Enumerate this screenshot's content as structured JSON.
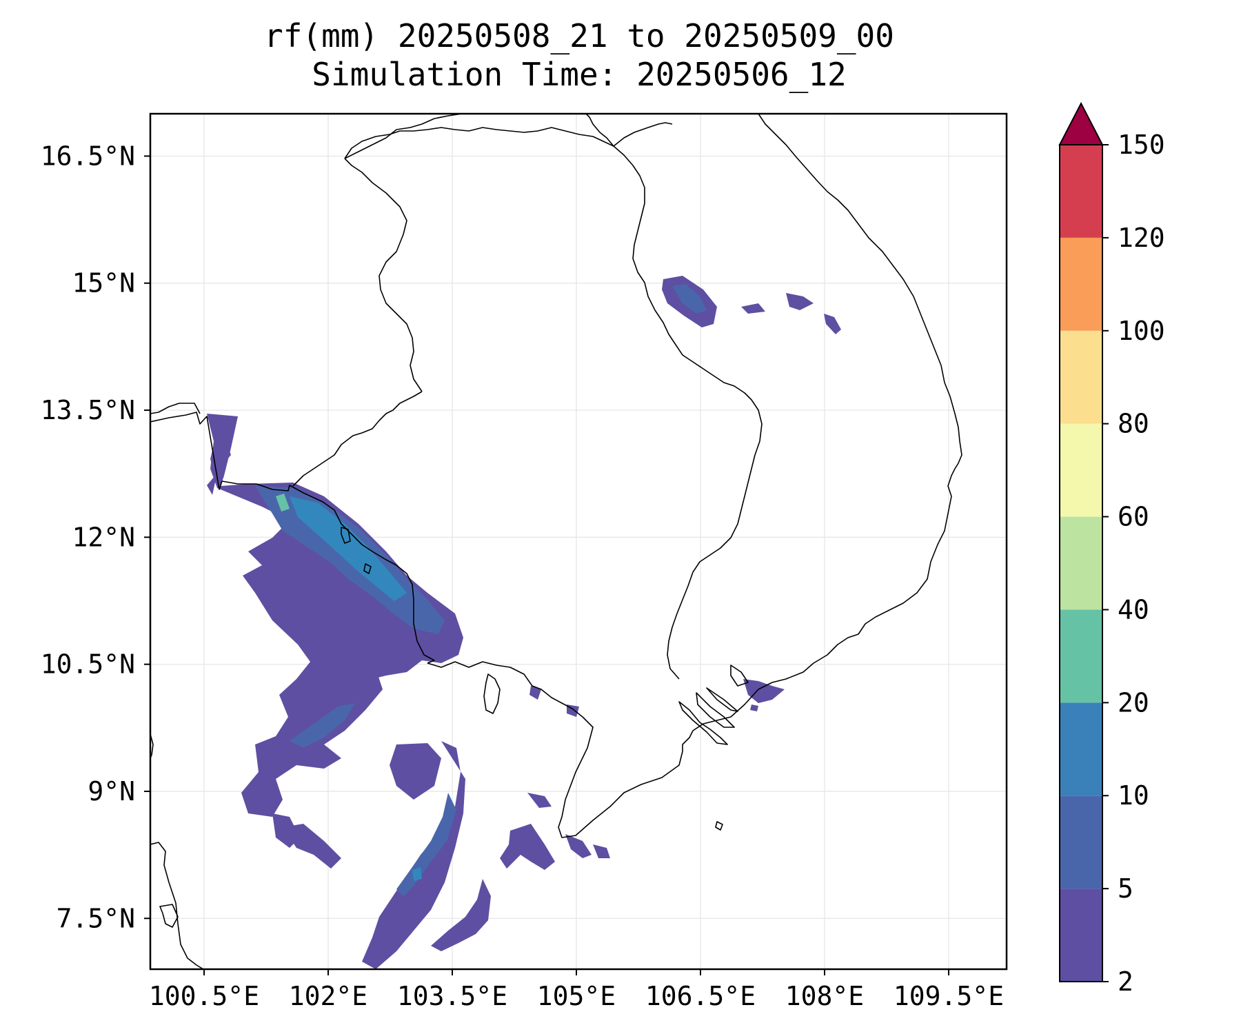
{
  "title": {
    "line1": "rf(mm) 20250508_21 to 20250509_00",
    "line2": "Simulation Time: 20250506_12"
  },
  "map": {
    "lon_range": [
      99.85,
      110.2
    ],
    "lat_range": [
      6.9,
      17.0
    ],
    "x_ticks": [
      {
        "value": 100.5,
        "label": "100.5°E"
      },
      {
        "value": 102.0,
        "label": "102°E"
      },
      {
        "value": 103.5,
        "label": "103.5°E"
      },
      {
        "value": 105.0,
        "label": "105°E"
      },
      {
        "value": 106.5,
        "label": "106.5°E"
      },
      {
        "value": 108.0,
        "label": "108°E"
      },
      {
        "value": 109.5,
        "label": "109.5°E"
      }
    ],
    "y_ticks": [
      {
        "value": 16.5,
        "label": "16.5°N"
      },
      {
        "value": 15.0,
        "label": "15°N"
      },
      {
        "value": 13.5,
        "label": "13.5°N"
      },
      {
        "value": 12.0,
        "label": "12°N"
      },
      {
        "value": 10.5,
        "label": "10.5°N"
      },
      {
        "value": 9.0,
        "label": "9°N"
      },
      {
        "value": 7.5,
        "label": "7.5°N"
      }
    ],
    "grid": true,
    "features": [
      "coastlines",
      "country borders"
    ],
    "precip_colors": {
      "light": "#5e4fa2",
      "moderate": "#4a66ab",
      "heavy": "#3288bd",
      "intense": "#66c2a5"
    }
  },
  "colorbar": {
    "levels": [
      2,
      5,
      10,
      20,
      40,
      60,
      80,
      100,
      120,
      150
    ],
    "labels": [
      "2",
      "5",
      "10",
      "20",
      "40",
      "60",
      "80",
      "100",
      "120",
      "150"
    ],
    "colors": [
      "#5e4fa2",
      "#4a66ab",
      "#3a80b9",
      "#66c2a5",
      "#bde3a1",
      "#f3f8ad",
      "#fbdf8e",
      "#f99d59",
      "#d53e4f"
    ],
    "extend_color": "#9e0142"
  }
}
